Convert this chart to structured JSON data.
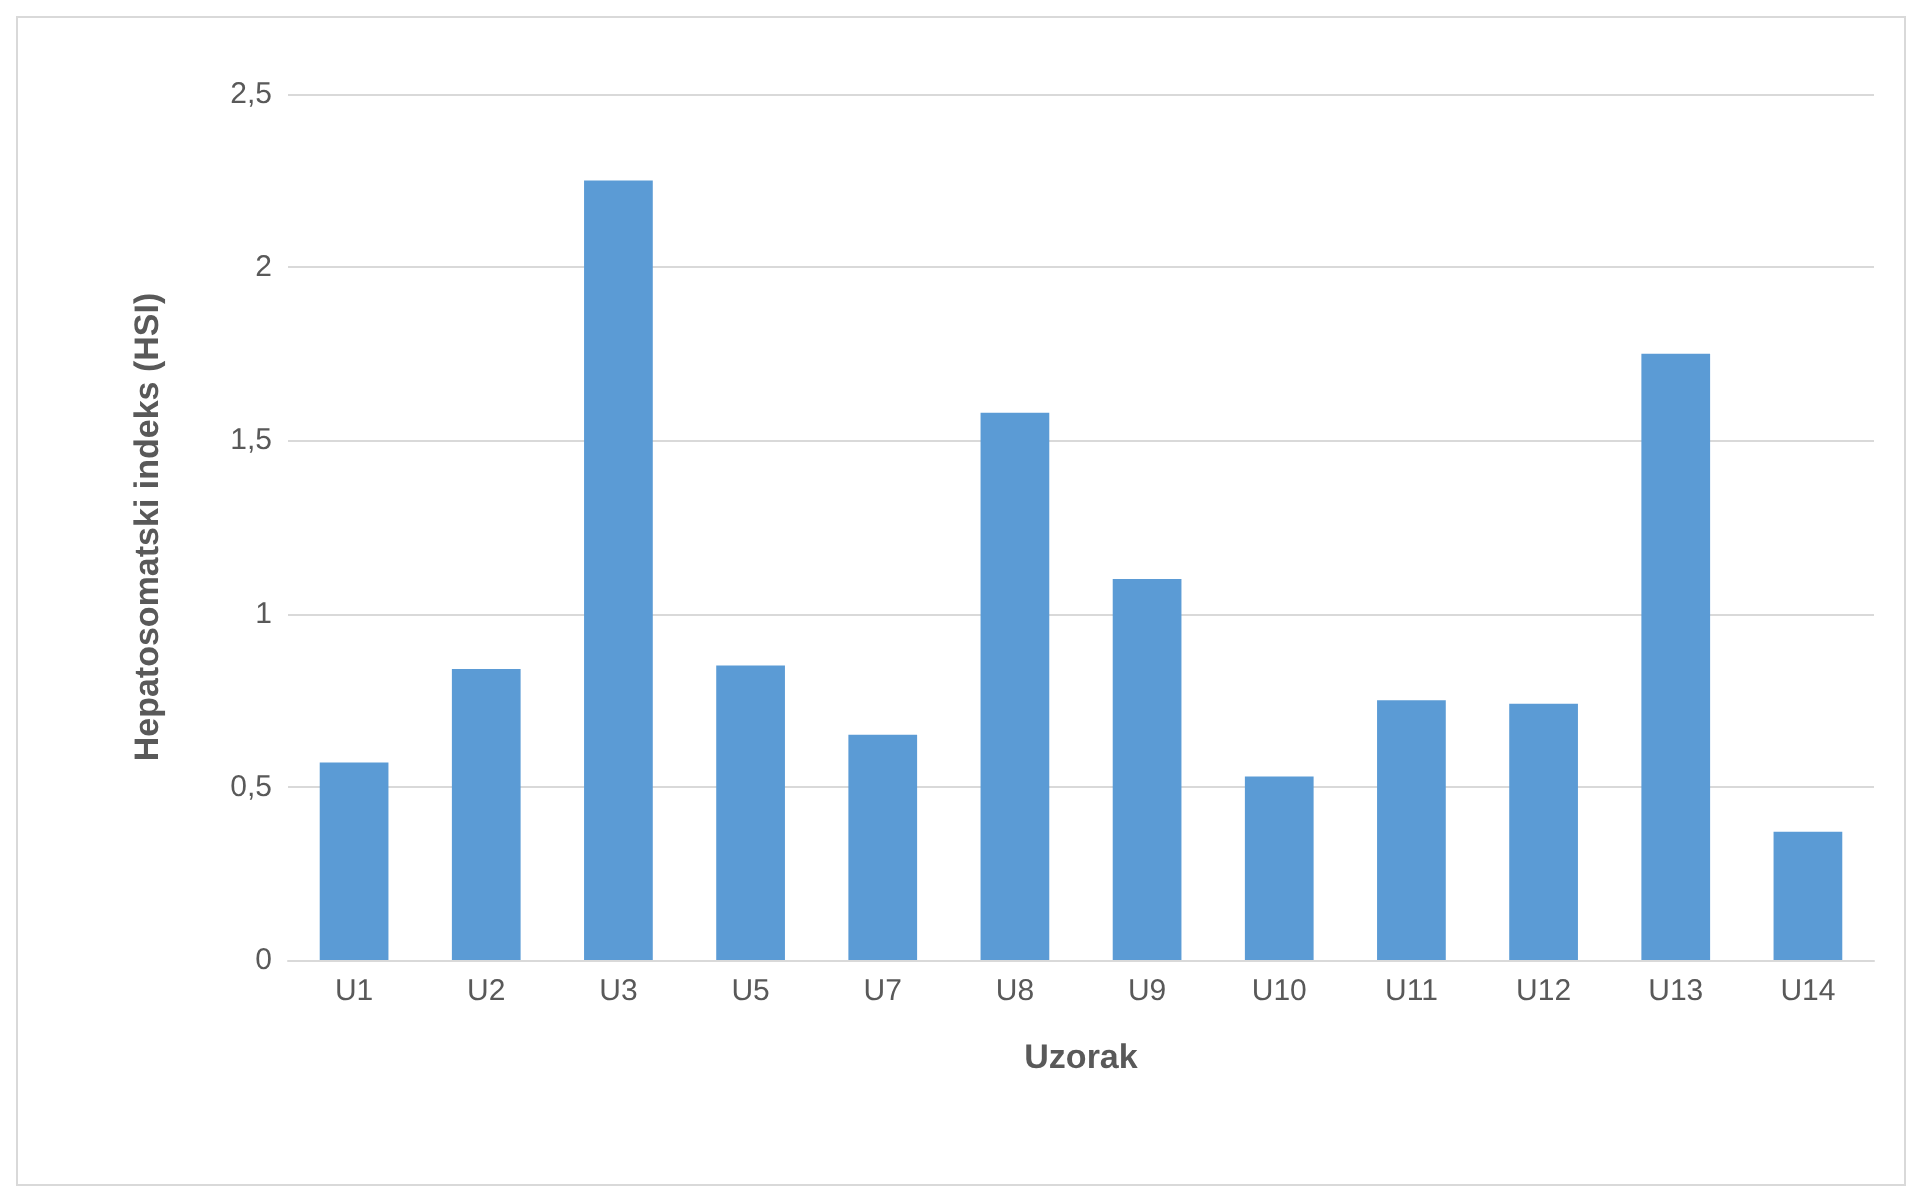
{
  "chart_data": {
    "type": "bar",
    "xlabel": "Uzorak",
    "ylabel": "Hepatosomatski indeks (HSI)",
    "categories": [
      "U1",
      "U2",
      "U3",
      "U5",
      "U7",
      "U8",
      "U9",
      "U10",
      "U11",
      "U12",
      "U13",
      "U14"
    ],
    "values": [
      0.57,
      0.84,
      2.25,
      0.85,
      0.65,
      1.58,
      1.1,
      0.53,
      0.75,
      0.74,
      1.75,
      0.37
    ],
    "color": "#5b9bd5",
    "ylim": [
      0,
      2.5
    ],
    "yticks": [
      0,
      {
        "value": 0.5,
        "label": "0,5"
      },
      1,
      {
        "value": 1.5,
        "label": "1,5"
      },
      2,
      {
        "value": 2.5,
        "label": "2,5"
      }
    ],
    "grid": "y"
  }
}
